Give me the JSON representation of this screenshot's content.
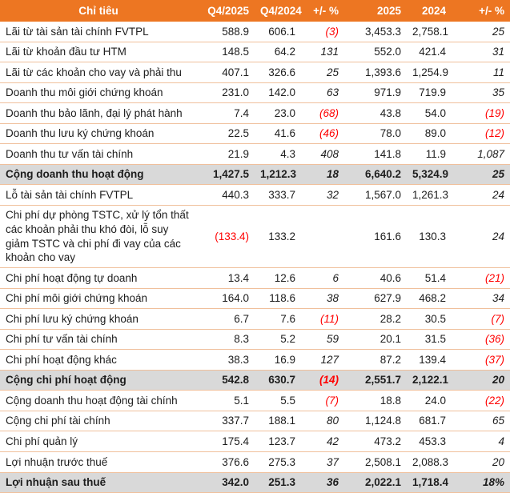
{
  "colors": {
    "header_bg": "#ED7622",
    "header_text": "#FFFFFF",
    "summary_row_bg": "#D9D9D9",
    "negative_value": "#FF0000",
    "row_border": "#F0C09C",
    "body_text": "#1D1D1D"
  },
  "chart_data": {
    "type": "table",
    "title": "",
    "columns": [
      "Chỉ tiêu",
      "Q4/2025",
      "Q4/2024",
      "+/- %",
      "2025",
      "2024",
      "+/- %"
    ],
    "rows": [
      {
        "label": "Lãi từ tài sản tài chính FVTPL",
        "values": [
          "588.9",
          "606.1",
          "(3)",
          "3,453.3",
          "2,758.1",
          "25"
        ],
        "summary": false
      },
      {
        "label": "Lãi từ khoản đầu tư HTM",
        "values": [
          "148.5",
          "64.2",
          "131",
          "552.0",
          "421.4",
          "31"
        ],
        "summary": false
      },
      {
        "label": "Lãi từ các khoản cho vay và phải thu",
        "values": [
          "407.1",
          "326.6",
          "25",
          "1,393.6",
          "1,254.9",
          "11"
        ],
        "summary": false
      },
      {
        "label": "Doanh thu môi giới chứng khoán",
        "values": [
          "231.0",
          "142.0",
          "63",
          "971.9",
          "719.9",
          "35"
        ],
        "summary": false
      },
      {
        "label": "Doanh thu bảo lãnh, đại lý phát hành",
        "values": [
          "7.4",
          "23.0",
          "(68)",
          "43.8",
          "54.0",
          "(19)"
        ],
        "summary": false
      },
      {
        "label": "Doanh thu lưu ký chứng khoán",
        "values": [
          "22.5",
          "41.6",
          "(46)",
          "78.0",
          "89.0",
          "(12)"
        ],
        "summary": false
      },
      {
        "label": "Doanh thu tư vấn tài chính",
        "values": [
          "21.9",
          "4.3",
          "408",
          "141.8",
          "11.9",
          "1,087"
        ],
        "summary": false
      },
      {
        "label": "Cộng doanh thu hoạt động",
        "values": [
          "1,427.5",
          "1,212.3",
          "18",
          "6,640.2",
          "5,324.9",
          "25"
        ],
        "summary": true
      },
      {
        "label": "Lỗ tài sản tài chính FVTPL",
        "values": [
          "440.3",
          "333.7",
          "32",
          "1,567.0",
          "1,261.3",
          "24"
        ],
        "summary": false
      },
      {
        "label": "Chi phí dự phòng TSTC, xử lý tổn thất các khoản phải thu khó đòi, lỗ suy giảm TSTC và chi phí đi vay của các khoản cho vay",
        "values": [
          "(133.4)",
          "133.2",
          "",
          "161.6",
          "130.3",
          "24"
        ],
        "summary": false
      },
      {
        "label": "Chi phí hoạt động tự doanh",
        "values": [
          "13.4",
          "12.6",
          "6",
          "40.6",
          "51.4",
          "(21)"
        ],
        "summary": false
      },
      {
        "label": "Chi phí môi giới chứng khoán",
        "values": [
          "164.0",
          "118.6",
          "38",
          "627.9",
          "468.2",
          "34"
        ],
        "summary": false
      },
      {
        "label": "Chi phí lưu ký chứng khoán",
        "values": [
          "6.7",
          "7.6",
          "(11)",
          "28.2",
          "30.5",
          "(7)"
        ],
        "summary": false
      },
      {
        "label": "Chi phí tư vấn tài chính",
        "values": [
          "8.3",
          "5.2",
          "59",
          "20.1",
          "31.5",
          "(36)"
        ],
        "summary": false
      },
      {
        "label": "Chi phí hoạt động khác",
        "values": [
          "38.3",
          "16.9",
          "127",
          "87.2",
          "139.4",
          "(37)"
        ],
        "summary": false
      },
      {
        "label": "Cộng chi phí hoạt động",
        "values": [
          "542.8",
          "630.7",
          "(14)",
          "2,551.7",
          "2,122.1",
          "20"
        ],
        "summary": true
      },
      {
        "label": "Cộng doanh thu hoạt động tài chính",
        "values": [
          "5.1",
          "5.5",
          "(7)",
          "18.8",
          "24.0",
          "(22)"
        ],
        "summary": false
      },
      {
        "label": "Cộng chi phí tài chính",
        "values": [
          "337.7",
          "188.1",
          "80",
          "1,124.8",
          "681.7",
          "65"
        ],
        "summary": false
      },
      {
        "label": "Chi phí quản lý",
        "values": [
          "175.4",
          "123.7",
          "42",
          "473.2",
          "453.3",
          "4"
        ],
        "summary": false
      },
      {
        "label": "Lợi nhuận trước thuế",
        "values": [
          "376.6",
          "275.3",
          "37",
          "2,508.1",
          "2,088.3",
          "20"
        ],
        "summary": false
      },
      {
        "label": "Lợi nhuận sau thuế",
        "values": [
          "342.0",
          "251.3",
          "36",
          "2,022.1",
          "1,718.4",
          "18%"
        ],
        "summary": true
      }
    ],
    "notes": "Values in parentheses are negative and shown in red; the two +/- % columns are italic; rows flagged summary have gray background and bold text"
  }
}
